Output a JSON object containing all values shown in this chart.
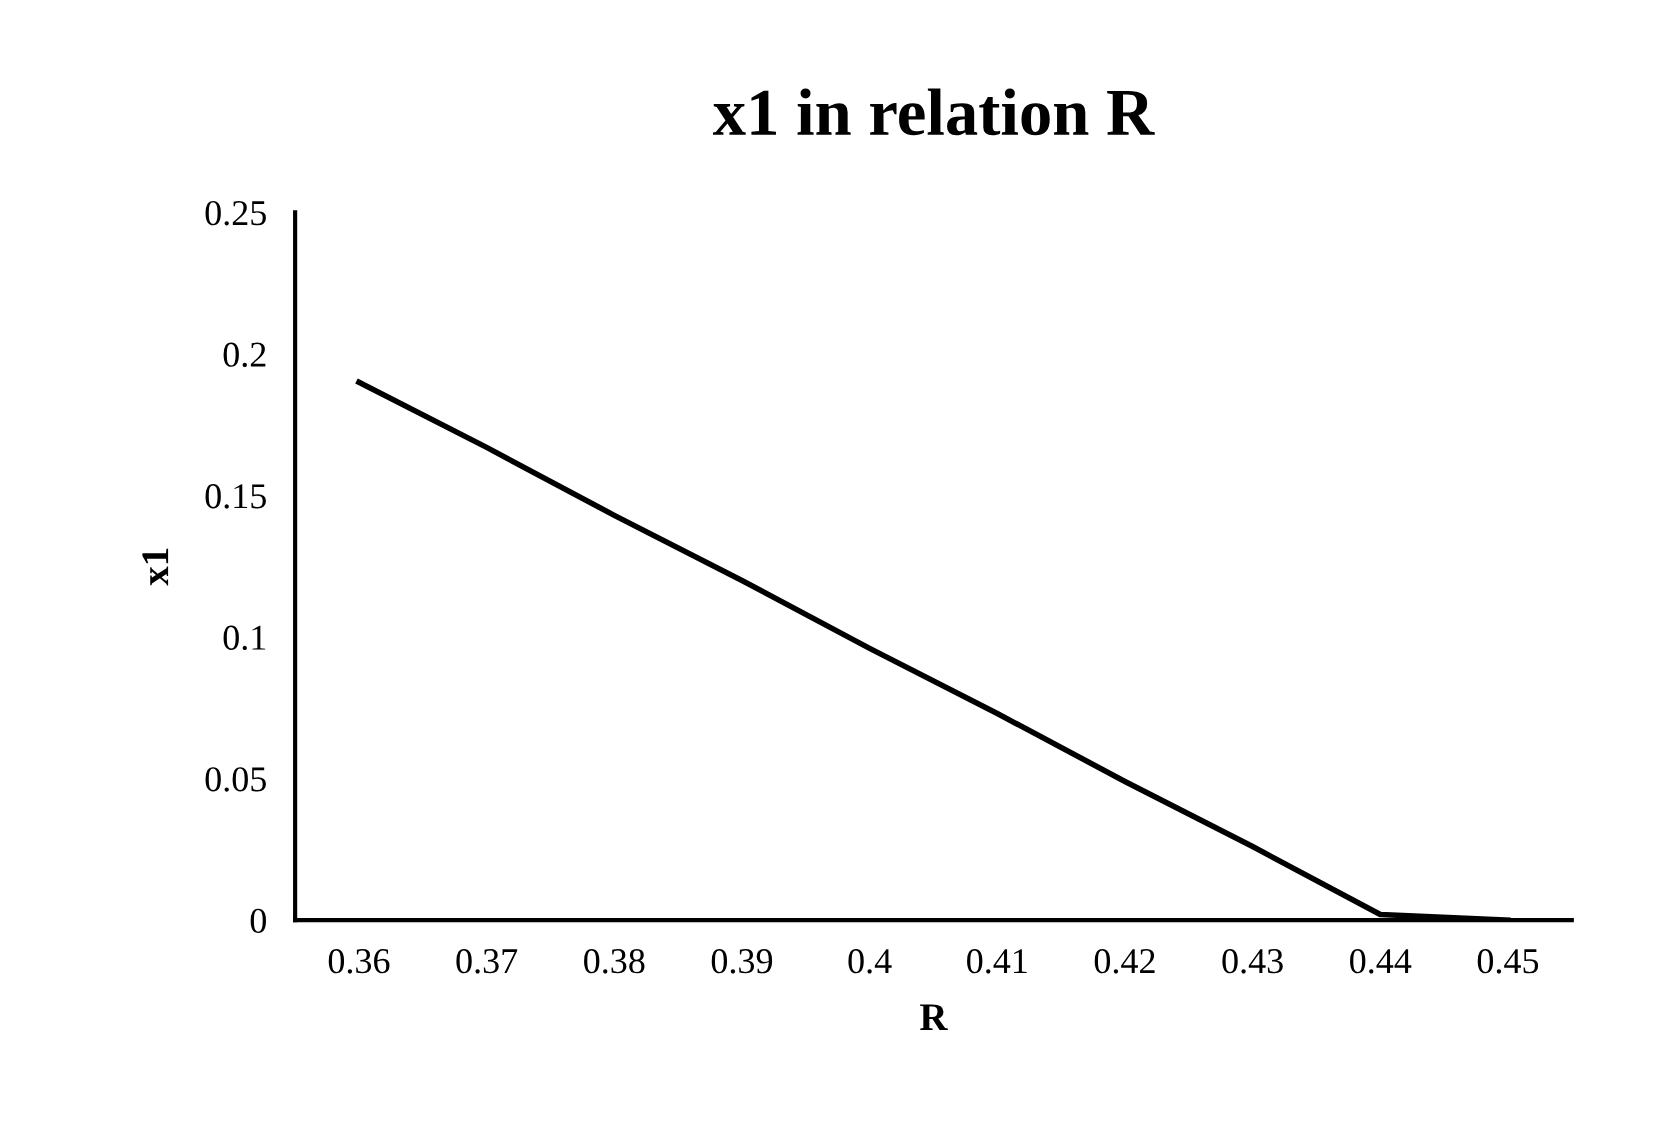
{
  "chart_data": {
    "type": "line",
    "title": "x1 in relation R",
    "xlabel": "R",
    "ylabel": "x1",
    "categories": [
      "0.36",
      "0.37",
      "0.38",
      "0.39",
      "0.4",
      "0.41",
      "0.42",
      "0.43",
      "0.44",
      "0.45"
    ],
    "series": [
      {
        "color": "#000000",
        "values": [
          0.19,
          0.167,
          0.143,
          0.12,
          0.096,
          0.073,
          0.049,
          0.026,
          0.002,
          0
        ]
      }
    ],
    "ylim": [
      0,
      0.25
    ],
    "yticks": [
      0,
      0.05,
      0.1,
      0.15,
      0.2,
      0.25
    ],
    "grid": false,
    "legend": false,
    "marker": "none",
    "line_style": "solid"
  }
}
